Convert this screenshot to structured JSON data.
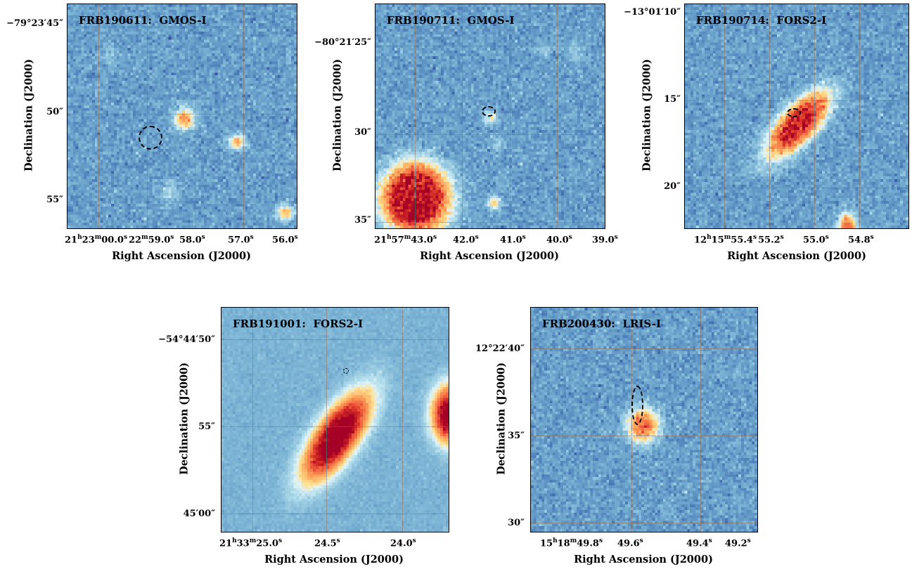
{
  "axis_labels": {
    "x": "Right Ascension (J2000)",
    "y": "Declination (J2000)"
  },
  "panels": [
    {
      "title": "FRB190611:  GMOS-I",
      "x_ticks": [
        "21<sup>h</sup>23<sup>m</sup>00.0<sup>s</sup>",
        "22<sup>m</sup>59.0<sup>s</sup>",
        "58.0<sup>s</sup>",
        "57.0<sup>s</sup>",
        "56.0<sup>s</sup>"
      ],
      "y_ticks": [
        "−79°23′<span>45</span>″",
        "50″",
        "55″"
      ],
      "sources": [
        {
          "fx": 0.505,
          "fy": 0.505,
          "sx": 0.03,
          "sy": 0.032,
          "amp": 0.9
        },
        {
          "fx": 0.735,
          "fy": 0.61,
          "sx": 0.025,
          "sy": 0.022,
          "amp": 0.75
        },
        {
          "fx": 0.945,
          "fy": 0.925,
          "sx": 0.025,
          "sy": 0.022,
          "amp": 0.75
        },
        {
          "fx": 0.44,
          "fy": 0.83,
          "sx": 0.03,
          "sy": 0.03,
          "amp": 0.25
        },
        {
          "fx": 0.18,
          "fy": 0.22,
          "sx": 0.03,
          "sy": 0.03,
          "amp": 0.15
        }
      ]
    },
    {
      "title": "FRB190711:  GMOS-I",
      "x_ticks": [
        "21<sup>h</sup>57<sup>m</sup>43.0<sup>s</sup>",
        "42.0<sup>s</sup>",
        "41.0<sup>s</sup>",
        "40.0<sup>s</sup>",
        "39.0<sup>s</sup>"
      ],
      "y_ticks": [
        "−80°21′<span>25</span>″",
        "30″",
        "35″"
      ],
      "sources": [
        {
          "fx": 0.17,
          "fy": 0.86,
          "sx": 0.08,
          "sy": 0.085,
          "amp": 3.5
        },
        {
          "fx": 0.495,
          "fy": 0.5,
          "sx": 0.02,
          "sy": 0.022,
          "amp": 0.5
        },
        {
          "fx": 0.51,
          "fy": 0.88,
          "sx": 0.02,
          "sy": 0.02,
          "amp": 0.65
        },
        {
          "fx": 0.53,
          "fy": 0.62,
          "sx": 0.018,
          "sy": 0.018,
          "amp": 0.25
        },
        {
          "fx": 0.73,
          "fy": 0.2,
          "sx": 0.02,
          "sy": 0.02,
          "amp": 0.2
        },
        {
          "fx": 0.87,
          "fy": 0.22,
          "sx": 0.03,
          "sy": 0.03,
          "amp": 0.15
        }
      ]
    },
    {
      "title": "FRB190714:  FORS2-I",
      "x_ticks": [
        "12<sup>h</sup>15<sup>m</sup>55.4<sup>s</sup>",
        "55.2<sup>s</sup>",
        "55.0<sup>s</sup>",
        "54.8<sup>s</sup>"
      ],
      "y_ticks": [
        "−13°01′<span>10</span>″",
        "15″",
        "20″"
      ],
      "sources": [
        {
          "fx": 0.5,
          "fy": 0.53,
          "sx": 0.045,
          "sy": 0.11,
          "rot": -0.75,
          "amp": 2.2
        },
        {
          "fx": 0.72,
          "fy": 0.99,
          "sx": 0.025,
          "sy": 0.04,
          "amp": 1.2
        }
      ]
    },
    {
      "title": "FRB191001:  FORS2-I",
      "x_ticks": [
        "21<sup>h</sup>33<sup>m</sup>25.0<sup>s</sup>",
        "24.5<sup>s</sup>",
        "24.0<sup>s</sup>"
      ],
      "y_ticks": [
        "−54°44′<span>50</span>″",
        "55″",
        "45′<span>00</span>″"
      ],
      "sources": [
        {
          "fx": 0.5,
          "fy": 0.57,
          "sx": 0.055,
          "sy": 0.14,
          "rot": -0.6,
          "amp": 2.2
        },
        {
          "fx": 1.0,
          "fy": 0.47,
          "sx": 0.05,
          "sy": 0.08,
          "amp": 2.0
        }
      ]
    },
    {
      "title": "FRB200430:  LRIS-I",
      "x_ticks": [
        "15<sup>h</sup>18<sup>m</sup>49.8<sup>s</sup>",
        "49.6<sup>s</sup>",
        "49.4<sup>s</sup>",
        "49.2<sup>s</sup>"
      ],
      "y_ticks": [
        "12°22′<span>40</span>″",
        "35″",
        "30″"
      ],
      "sources": [
        {
          "fx": 0.49,
          "fy": 0.52,
          "sx": 0.045,
          "sy": 0.05,
          "amp": 1.2
        }
      ]
    }
  ]
}
